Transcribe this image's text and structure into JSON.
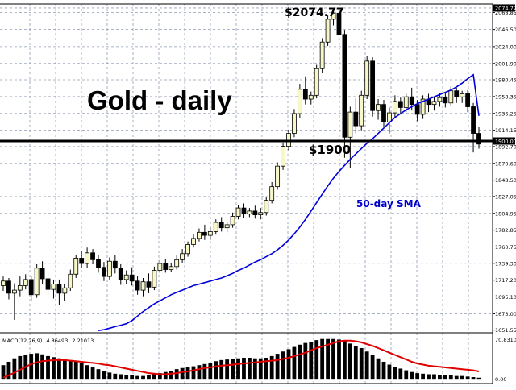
{
  "chart_data": {
    "type": "candlestick",
    "title": "Gold - daily",
    "price_axis": {
      "ticks": [
        "2074.77",
        "2068.85",
        "2046.50",
        "2024.00",
        "2001.90",
        "1980.45",
        "1958.35",
        "1936.25",
        "1914.15",
        "1900.00",
        "1892.70",
        "1870.60",
        "1848.50",
        "1827.05",
        "1804.95",
        "1782.85",
        "1760.75",
        "1739.30",
        "1717.20",
        "1695.10",
        "1673.00",
        "1651.55"
      ],
      "range": [
        1648,
        2080
      ],
      "grid": true
    },
    "annotations": {
      "peak_label": "$2074.77",
      "level_label": "$1900",
      "level_value": 1900,
      "sma_label": "50-day SMA"
    },
    "candles": [
      {
        "o": 1710,
        "h": 1722,
        "c": 1716,
        "l": 1703
      },
      {
        "o": 1716,
        "h": 1720,
        "c": 1700,
        "l": 1692
      },
      {
        "o": 1700,
        "h": 1713,
        "c": 1704,
        "l": 1665
      },
      {
        "o": 1704,
        "h": 1722,
        "c": 1710,
        "l": 1696
      },
      {
        "o": 1710,
        "h": 1725,
        "c": 1718,
        "l": 1705
      },
      {
        "o": 1718,
        "h": 1723,
        "c": 1698,
        "l": 1690
      },
      {
        "o": 1698,
        "h": 1738,
        "c": 1733,
        "l": 1694
      },
      {
        "o": 1733,
        "h": 1742,
        "c": 1719,
        "l": 1712
      },
      {
        "o": 1719,
        "h": 1727,
        "c": 1705,
        "l": 1698
      },
      {
        "o": 1705,
        "h": 1717,
        "c": 1712,
        "l": 1693
      },
      {
        "o": 1712,
        "h": 1718,
        "c": 1700,
        "l": 1684
      },
      {
        "o": 1700,
        "h": 1712,
        "c": 1707,
        "l": 1690
      },
      {
        "o": 1707,
        "h": 1731,
        "c": 1725,
        "l": 1703
      },
      {
        "o": 1725,
        "h": 1750,
        "c": 1746,
        "l": 1720
      },
      {
        "o": 1746,
        "h": 1756,
        "c": 1739,
        "l": 1733
      },
      {
        "o": 1739,
        "h": 1760,
        "c": 1753,
        "l": 1733
      },
      {
        "o": 1753,
        "h": 1758,
        "c": 1744,
        "l": 1738
      },
      {
        "o": 1744,
        "h": 1750,
        "c": 1734,
        "l": 1727
      },
      {
        "o": 1734,
        "h": 1741,
        "c": 1722,
        "l": 1716
      },
      {
        "o": 1722,
        "h": 1747,
        "c": 1742,
        "l": 1718
      },
      {
        "o": 1742,
        "h": 1750,
        "c": 1733,
        "l": 1726
      },
      {
        "o": 1733,
        "h": 1738,
        "c": 1718,
        "l": 1711
      },
      {
        "o": 1718,
        "h": 1730,
        "c": 1724,
        "l": 1712
      },
      {
        "o": 1724,
        "h": 1734,
        "c": 1716,
        "l": 1710
      },
      {
        "o": 1716,
        "h": 1723,
        "c": 1704,
        "l": 1698
      },
      {
        "o": 1704,
        "h": 1720,
        "c": 1715,
        "l": 1696
      },
      {
        "o": 1715,
        "h": 1726,
        "c": 1708,
        "l": 1700
      },
      {
        "o": 1708,
        "h": 1735,
        "c": 1730,
        "l": 1704
      },
      {
        "o": 1730,
        "h": 1744,
        "c": 1739,
        "l": 1726
      },
      {
        "o": 1739,
        "h": 1745,
        "c": 1731,
        "l": 1727
      },
      {
        "o": 1731,
        "h": 1740,
        "c": 1735,
        "l": 1728
      },
      {
        "o": 1735,
        "h": 1750,
        "c": 1744,
        "l": 1731
      },
      {
        "o": 1744,
        "h": 1758,
        "c": 1752,
        "l": 1740
      },
      {
        "o": 1752,
        "h": 1768,
        "c": 1764,
        "l": 1748
      },
      {
        "o": 1764,
        "h": 1778,
        "c": 1772,
        "l": 1760
      },
      {
        "o": 1772,
        "h": 1785,
        "c": 1780,
        "l": 1768
      },
      {
        "o": 1780,
        "h": 1790,
        "c": 1776,
        "l": 1770
      },
      {
        "o": 1776,
        "h": 1786,
        "c": 1781,
        "l": 1770
      },
      {
        "o": 1781,
        "h": 1797,
        "c": 1793,
        "l": 1777
      },
      {
        "o": 1793,
        "h": 1800,
        "c": 1786,
        "l": 1781
      },
      {
        "o": 1786,
        "h": 1794,
        "c": 1790,
        "l": 1780
      },
      {
        "o": 1790,
        "h": 1806,
        "c": 1801,
        "l": 1786
      },
      {
        "o": 1801,
        "h": 1816,
        "c": 1812,
        "l": 1797
      },
      {
        "o": 1812,
        "h": 1818,
        "c": 1804,
        "l": 1799
      },
      {
        "o": 1804,
        "h": 1812,
        "c": 1808,
        "l": 1800
      },
      {
        "o": 1808,
        "h": 1815,
        "c": 1803,
        "l": 1798
      },
      {
        "o": 1803,
        "h": 1812,
        "c": 1806,
        "l": 1797
      },
      {
        "o": 1806,
        "h": 1826,
        "c": 1822,
        "l": 1802
      },
      {
        "o": 1822,
        "h": 1846,
        "c": 1840,
        "l": 1818
      },
      {
        "o": 1840,
        "h": 1872,
        "c": 1867,
        "l": 1836
      },
      {
        "o": 1867,
        "h": 1898,
        "c": 1893,
        "l": 1862
      },
      {
        "o": 1893,
        "h": 1915,
        "c": 1910,
        "l": 1888
      },
      {
        "o": 1910,
        "h": 1942,
        "c": 1936,
        "l": 1905
      },
      {
        "o": 1936,
        "h": 1975,
        "c": 1968,
        "l": 1930
      },
      {
        "o": 1968,
        "h": 1985,
        "c": 1955,
        "l": 1948
      },
      {
        "o": 1955,
        "h": 1965,
        "c": 1960,
        "l": 1948
      },
      {
        "o": 1960,
        "h": 2000,
        "c": 1995,
        "l": 1956
      },
      {
        "o": 1995,
        "h": 2035,
        "c": 2030,
        "l": 1990
      },
      {
        "o": 2030,
        "h": 2065,
        "c": 2060,
        "l": 2025
      },
      {
        "o": 2060,
        "h": 2074.77,
        "c": 2068,
        "l": 2052
      },
      {
        "o": 2068,
        "h": 2072,
        "c": 2040,
        "l": 2030
      },
      {
        "o": 2040,
        "h": 2046,
        "c": 1905,
        "l": 1878
      },
      {
        "o": 1905,
        "h": 1945,
        "c": 1938,
        "l": 1865
      },
      {
        "o": 1938,
        "h": 1956,
        "c": 1920,
        "l": 1910
      },
      {
        "o": 1920,
        "h": 1966,
        "c": 1960,
        "l": 1914
      },
      {
        "o": 1960,
        "h": 2012,
        "c": 2005,
        "l": 1955
      },
      {
        "o": 2005,
        "h": 2010,
        "c": 1940,
        "l": 1932
      },
      {
        "o": 1940,
        "h": 1955,
        "c": 1948,
        "l": 1928
      },
      {
        "o": 1948,
        "h": 1954,
        "c": 1925,
        "l": 1918
      },
      {
        "o": 1925,
        "h": 1944,
        "c": 1937,
        "l": 1910
      },
      {
        "o": 1937,
        "h": 1960,
        "c": 1952,
        "l": 1930
      },
      {
        "o": 1952,
        "h": 1957,
        "c": 1944,
        "l": 1935
      },
      {
        "o": 1944,
        "h": 1962,
        "c": 1958,
        "l": 1938
      },
      {
        "o": 1958,
        "h": 1970,
        "c": 1948,
        "l": 1940
      },
      {
        "o": 1948,
        "h": 1954,
        "c": 1935,
        "l": 1926
      },
      {
        "o": 1935,
        "h": 1960,
        "c": 1955,
        "l": 1929
      },
      {
        "o": 1955,
        "h": 1962,
        "c": 1948,
        "l": 1938
      },
      {
        "o": 1948,
        "h": 1958,
        "c": 1952,
        "l": 1940
      },
      {
        "o": 1952,
        "h": 1963,
        "c": 1957,
        "l": 1945
      },
      {
        "o": 1957,
        "h": 1964,
        "c": 1950,
        "l": 1944
      },
      {
        "o": 1950,
        "h": 1972,
        "c": 1966,
        "l": 1946
      },
      {
        "o": 1966,
        "h": 1970,
        "c": 1958,
        "l": 1950
      },
      {
        "o": 1958,
        "h": 1966,
        "c": 1962,
        "l": 1950
      },
      {
        "o": 1962,
        "h": 1967,
        "c": 1945,
        "l": 1938
      },
      {
        "o": 1945,
        "h": 1950,
        "c": 1910,
        "l": 1885
      },
      {
        "o": 1910,
        "h": 1918,
        "c": 1896,
        "l": 1890
      }
    ],
    "sma_50": {
      "start_index": 17,
      "values": [
        1651,
        1652,
        1654,
        1656,
        1658,
        1660,
        1664,
        1670,
        1676,
        1681,
        1686,
        1690,
        1694,
        1698,
        1701,
        1704,
        1707,
        1710,
        1712,
        1714,
        1716,
        1718,
        1720,
        1723,
        1726,
        1730,
        1733,
        1737,
        1741,
        1744,
        1748,
        1752,
        1757,
        1763,
        1770,
        1778,
        1787,
        1797,
        1808,
        1819,
        1830,
        1841,
        1851,
        1860,
        1868,
        1876,
        1883,
        1890,
        1897,
        1903,
        1910,
        1917,
        1924,
        1931,
        1936,
        1941,
        1945,
        1949,
        1952,
        1955,
        1958,
        1961,
        1964,
        1967,
        1971,
        1976,
        1982,
        1987,
        1933
      ]
    },
    "macd": {
      "label": "MACD(12,26,9)",
      "main_value": "4.86493",
      "signal_value": "2.21013",
      "axis_top_label": "70.83103",
      "axis_bottom_label": "0.00",
      "range": [
        -4,
        71
      ],
      "histogram": [
        24,
        30,
        36,
        40,
        42,
        44,
        45,
        43,
        40,
        38,
        36,
        35,
        33,
        31,
        28,
        24,
        20,
        17,
        14,
        11,
        9,
        8,
        7,
        6,
        5,
        5,
        6,
        8,
        10,
        12,
        14,
        17,
        19,
        21,
        22,
        24,
        26,
        28,
        31,
        33,
        34,
        35,
        36,
        37,
        37,
        36,
        36,
        37,
        40,
        44,
        48,
        52,
        56,
        60,
        63,
        65,
        68,
        70,
        70,
        70,
        69,
        66,
        62,
        58,
        54,
        48,
        42,
        36,
        30,
        25,
        21,
        18,
        15,
        12,
        10,
        9,
        8,
        8,
        7,
        6,
        6,
        5,
        5,
        4,
        3,
        2
      ],
      "signal": [
        2,
        6,
        11,
        16,
        21,
        26,
        29,
        31,
        32,
        33,
        33,
        33,
        32,
        31,
        30,
        29,
        28,
        27,
        25,
        24,
        22,
        20,
        18,
        16,
        14,
        12,
        10,
        9,
        8,
        8,
        9,
        10,
        12,
        13,
        15,
        17,
        19,
        20,
        22,
        23,
        24,
        25,
        26,
        27,
        28,
        29,
        30,
        31,
        32,
        33,
        35,
        37,
        40,
        43,
        46,
        50,
        54,
        57,
        60,
        63,
        66,
        67,
        67,
        66,
        64,
        61,
        58,
        54,
        50,
        46,
        42,
        38,
        34,
        30,
        27,
        25,
        23,
        22,
        21,
        20,
        19,
        18,
        17,
        16,
        15,
        13
      ]
    }
  }
}
